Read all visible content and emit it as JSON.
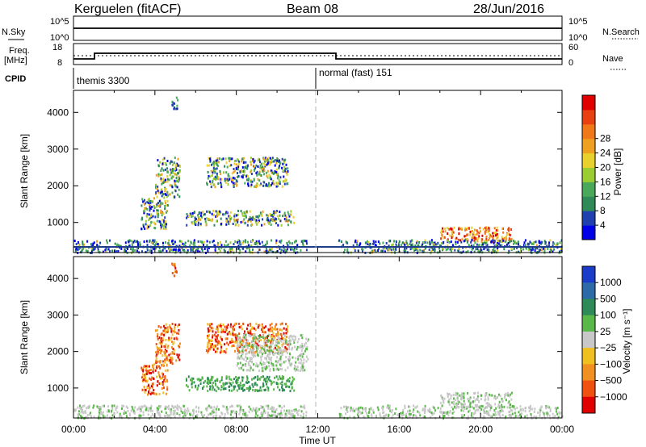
{
  "header": {
    "station": "Kerguelen (fitACF)",
    "beam": "Beam 08",
    "date": "28/Jun/2016"
  },
  "panels": {
    "nsky": {
      "left_label": "N.Sky",
      "left_ticks": [
        "10^5",
        "10^0"
      ],
      "right_label": "N.Search",
      "right_ticks": [
        "10^5",
        "10^0"
      ]
    },
    "freq": {
      "left_label_1": "Freq.",
      "left_label_2": "[MHz]",
      "left_ticks": [
        "18",
        "8"
      ],
      "right_label": "Nave",
      "right_ticks": [
        "60",
        "0"
      ]
    },
    "cpid": {
      "label": "CPID",
      "mode_1": "themis 3300",
      "mode_2": "normal (fast) 151"
    }
  },
  "chart_data": [
    {
      "type": "heatmap",
      "name": "Power",
      "ylabel": "Slant Range [km]",
      "xlabel": "",
      "xlim_hours": [
        0,
        24
      ],
      "ylim": [
        180,
        4600
      ],
      "yticks": [
        1000,
        2000,
        3000,
        4000
      ],
      "colorbar": {
        "label": "Power [dB]",
        "ticks": [
          "4",
          "8",
          "12",
          "16",
          "20",
          "24",
          "28"
        ],
        "colors": [
          "#0000e6",
          "#2040b0",
          "#2e8b57",
          "#4aa85a",
          "#9acd32",
          "#e8d12c",
          "#f0a020",
          "#f07818",
          "#e84010",
          "#e00000"
        ]
      },
      "regions": [
        {
          "t": [
            4.0,
            5.2
          ],
          "r": [
            1700,
            2800
          ],
          "level": "mid"
        },
        {
          "t": [
            3.3,
            4.6
          ],
          "r": [
            850,
            1700
          ],
          "level": "mid"
        },
        {
          "t": [
            4.8,
            5.1
          ],
          "r": [
            4050,
            4450
          ],
          "level": "low"
        },
        {
          "t": [
            5.5,
            10.8
          ],
          "r": [
            950,
            1350
          ],
          "level": "mid"
        },
        {
          "t": [
            6.5,
            10.5
          ],
          "r": [
            2000,
            2800
          ],
          "level": "mid"
        },
        {
          "t": [
            18.0,
            21.5
          ],
          "r": [
            500,
            900
          ],
          "level": "high"
        }
      ]
    },
    {
      "type": "heatmap",
      "name": "Velocity",
      "ylabel": "Slant Range [km]",
      "xlabel": "Time UT",
      "xlim_hours": [
        0,
        24
      ],
      "ylim": [
        180,
        4600
      ],
      "yticks": [
        1000,
        2000,
        3000,
        4000
      ],
      "xticks": [
        "00:00",
        "04:00",
        "08:00",
        "12:00",
        "16:00",
        "20:00",
        "00:00"
      ],
      "colorbar": {
        "label": "Velocity [m s⁻¹]",
        "ticks": [
          "1000",
          "500",
          "100",
          "25",
          "−25",
          "−100",
          "−500",
          "−1000"
        ],
        "colors": [
          "#1a3cc8",
          "#2c6aa8",
          "#2e8b57",
          "#5ab84a",
          "#c8c8c8",
          "#f0c020",
          "#f09020",
          "#f05010",
          "#e00000"
        ]
      },
      "regions": [
        {
          "t": [
            4.0,
            5.2
          ],
          "r": [
            1700,
            2800
          ],
          "level": "negative"
        },
        {
          "t": [
            3.3,
            4.6
          ],
          "r": [
            850,
            1700
          ],
          "level": "negative"
        },
        {
          "t": [
            4.8,
            5.1
          ],
          "r": [
            4050,
            4450
          ],
          "level": "negative"
        },
        {
          "t": [
            5.5,
            10.8
          ],
          "r": [
            950,
            1350
          ],
          "level": "positive"
        },
        {
          "t": [
            6.5,
            10.5
          ],
          "r": [
            2000,
            2800
          ],
          "level": "negative"
        },
        {
          "t": [
            8.0,
            11.5
          ],
          "r": [
            1500,
            2500
          ],
          "level": "ground"
        },
        {
          "t": [
            18.0,
            21.5
          ],
          "r": [
            500,
            900
          ],
          "level": "ground"
        }
      ]
    }
  ],
  "colors": {
    "axis": "#000000",
    "dashline": "#b4b4b4",
    "groundline": "#1f3d8a"
  }
}
